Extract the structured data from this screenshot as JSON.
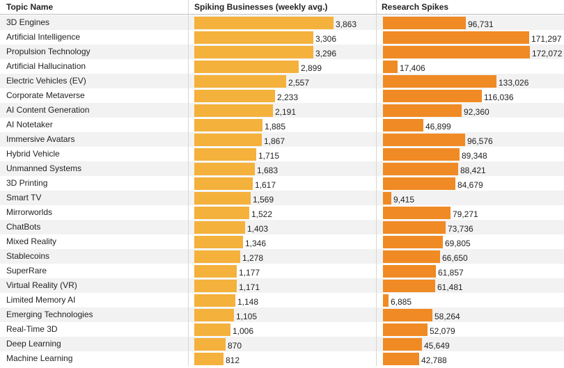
{
  "chart_data": {
    "type": "table",
    "columns": {
      "topic": "Topic Name",
      "businesses": "Spiking Businesses (weekly avg.)",
      "research": "Research Spikes"
    },
    "rows": [
      {
        "topic": "3D Engines",
        "businesses": 3863,
        "businesses_label": "3,863",
        "research": 96731,
        "research_label": "96,731"
      },
      {
        "topic": "Artificial Intelligence",
        "businesses": 3306,
        "businesses_label": "3,306",
        "research": 171297,
        "research_label": "171,297"
      },
      {
        "topic": "Propulsion Technology",
        "businesses": 3296,
        "businesses_label": "3,296",
        "research": 172072,
        "research_label": "172,072"
      },
      {
        "topic": "Artificial Hallucination",
        "businesses": 2899,
        "businesses_label": "2,899",
        "research": 17406,
        "research_label": "17,406"
      },
      {
        "topic": "Electric Vehicles (EV)",
        "businesses": 2557,
        "businesses_label": "2,557",
        "research": 133026,
        "research_label": "133,026"
      },
      {
        "topic": "Corporate Metaverse",
        "businesses": 2233,
        "businesses_label": "2,233",
        "research": 116036,
        "research_label": "116,036"
      },
      {
        "topic": "AI Content Generation",
        "businesses": 2191,
        "businesses_label": "2,191",
        "research": 92360,
        "research_label": "92,360"
      },
      {
        "topic": "AI Notetaker",
        "businesses": 1885,
        "businesses_label": "1,885",
        "research": 46899,
        "research_label": "46,899"
      },
      {
        "topic": "Immersive Avatars",
        "businesses": 1867,
        "businesses_label": "1,867",
        "research": 96576,
        "research_label": "96,576"
      },
      {
        "topic": "Hybrid Vehicle",
        "businesses": 1715,
        "businesses_label": "1,715",
        "research": 89348,
        "research_label": "89,348"
      },
      {
        "topic": "Unmanned Systems",
        "businesses": 1683,
        "businesses_label": "1,683",
        "research": 88421,
        "research_label": "88,421"
      },
      {
        "topic": "3D Printing",
        "businesses": 1617,
        "businesses_label": "1,617",
        "research": 84679,
        "research_label": "84,679"
      },
      {
        "topic": "Smart TV",
        "businesses": 1569,
        "businesses_label": "1,569",
        "research": 9415,
        "research_label": "9,415"
      },
      {
        "topic": "Mirrorworlds",
        "businesses": 1522,
        "businesses_label": "1,522",
        "research": 79271,
        "research_label": "79,271"
      },
      {
        "topic": "ChatBots",
        "businesses": 1403,
        "businesses_label": "1,403",
        "research": 73736,
        "research_label": "73,736"
      },
      {
        "topic": "Mixed Reality",
        "businesses": 1346,
        "businesses_label": "1,346",
        "research": 69805,
        "research_label": "69,805"
      },
      {
        "topic": "Stablecoins",
        "businesses": 1278,
        "businesses_label": "1,278",
        "research": 66650,
        "research_label": "66,650"
      },
      {
        "topic": "SuperRare",
        "businesses": 1177,
        "businesses_label": "1,177",
        "research": 61857,
        "research_label": "61,857"
      },
      {
        "topic": "Virtual Reality (VR)",
        "businesses": 1171,
        "businesses_label": "1,171",
        "research": 61481,
        "research_label": "61,481"
      },
      {
        "topic": "Limited Memory AI",
        "businesses": 1148,
        "businesses_label": "1,148",
        "research": 6885,
        "research_label": "6,885"
      },
      {
        "topic": "Emerging Technologies",
        "businesses": 1105,
        "businesses_label": "1,105",
        "research": 58264,
        "research_label": "58,264"
      },
      {
        "topic": "Real-Time 3D",
        "businesses": 1006,
        "businesses_label": "1,006",
        "research": 52079,
        "research_label": "52,079"
      },
      {
        "topic": "Deep Learning",
        "businesses": 870,
        "businesses_label": "870",
        "research": 45649,
        "research_label": "45,649"
      },
      {
        "topic": "Machine Learning",
        "businesses": 812,
        "businesses_label": "812",
        "research": 42788,
        "research_label": "42,788"
      }
    ],
    "colors": {
      "businesses": "#f4b13c",
      "research": "#f08a24",
      "row_shade": "#f2f2f2"
    }
  }
}
